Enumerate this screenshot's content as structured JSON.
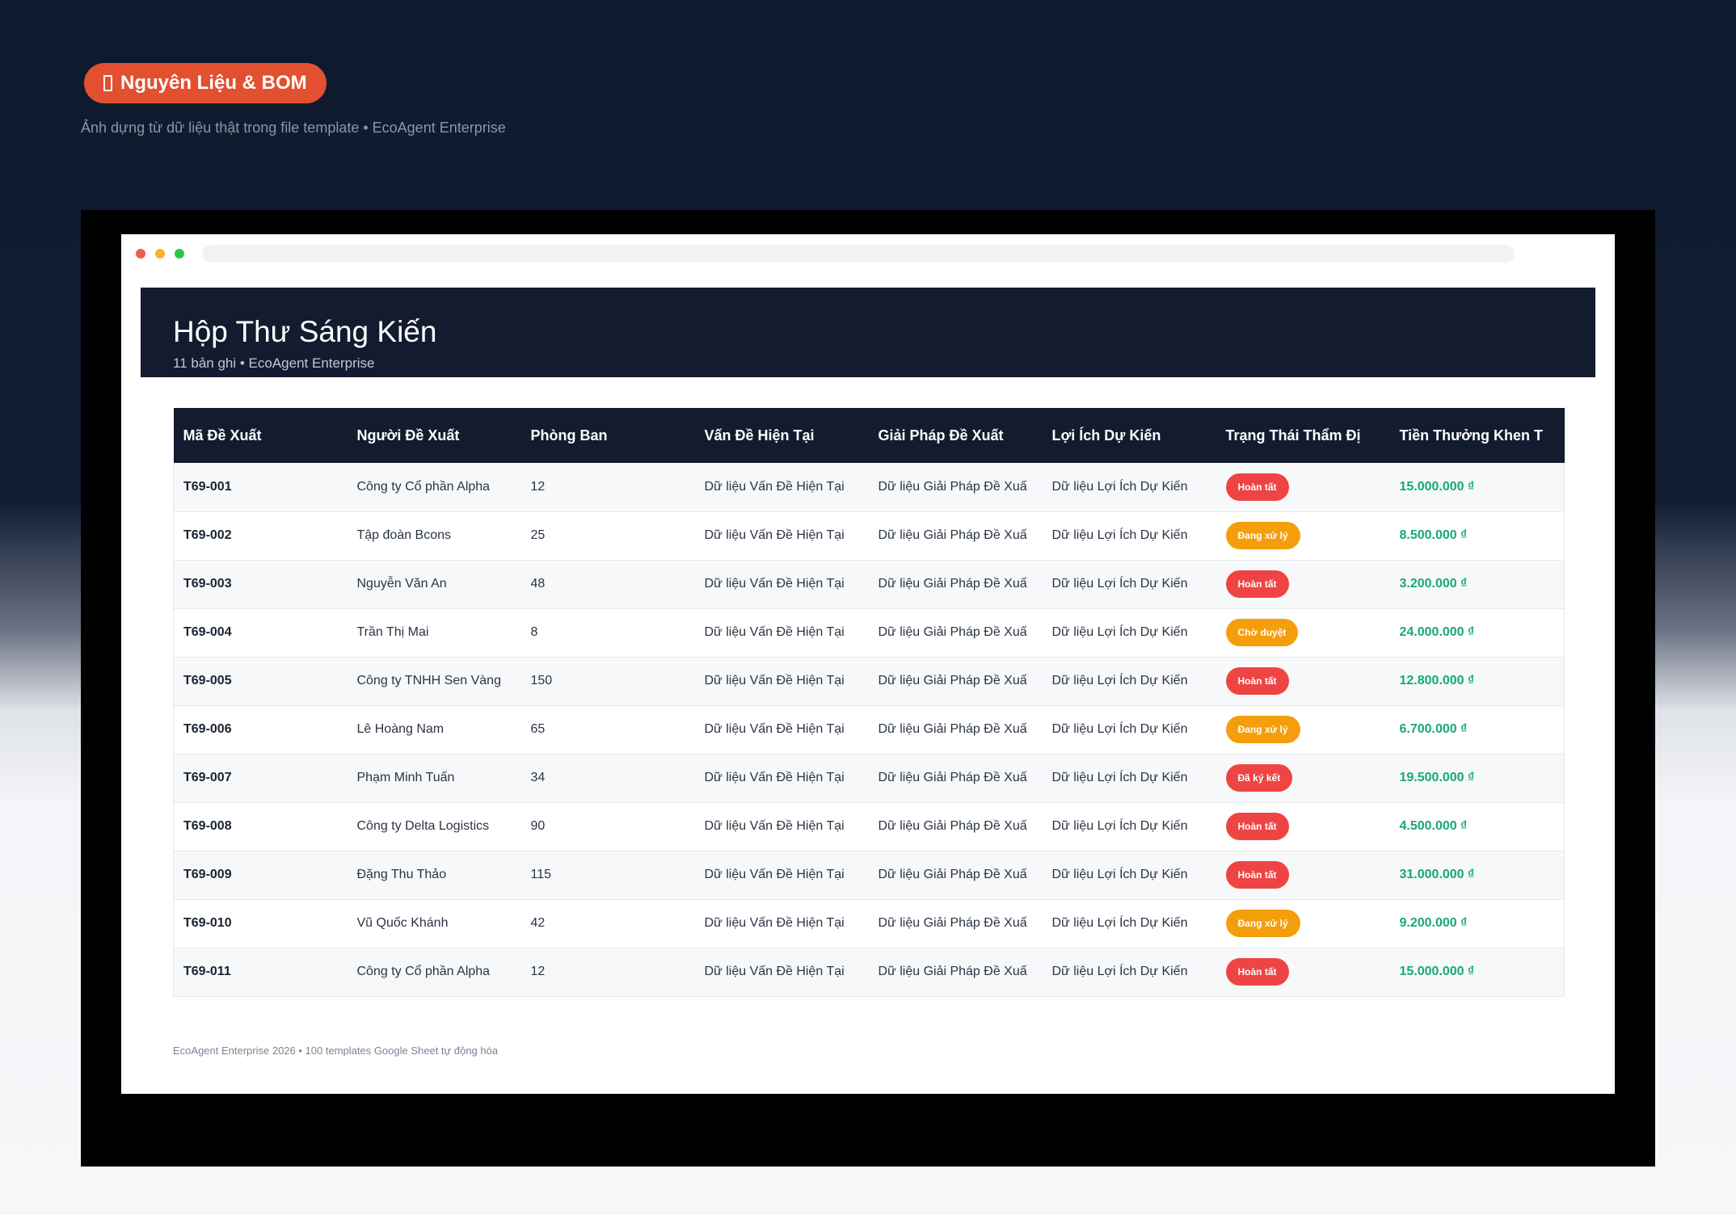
{
  "badge": {
    "icon": "document-icon",
    "label": "Nguyên Liệu & BOM"
  },
  "tagline": "Ảnh dựng từ dữ liệu thật trong file template • EcoAgent Enterprise",
  "sheet": {
    "title": "Hộp Thư Sáng Kiến",
    "subtitle": "11 bản ghi • EcoAgent Enterprise"
  },
  "table": {
    "columns": [
      "Mã Đề Xuất",
      "Người Đề Xuất",
      "Phòng Ban",
      "Vấn Đề Hiện Tại",
      "Giải Pháp Đề Xuất",
      "Lợi Ích Dự Kiến",
      "Trạng Thái Thẩm Đị",
      "Tiền Thưởng Khen T"
    ],
    "rows": [
      {
        "id": "T69-001",
        "person": "Công ty Cổ phần Alpha",
        "dept": "12",
        "problem": "Dữ liệu Vấn Đề Hiện Tại",
        "solution": "Dữ liệu Giải Pháp Đề Xuấ",
        "benefit": "Dữ liệu Lợi Ích Dự Kiến",
        "status": "Hoàn tất",
        "status_color": "#ef4444",
        "reward": "15.000.000 ₫"
      },
      {
        "id": "T69-002",
        "person": "Tập đoàn Bcons",
        "dept": "25",
        "problem": "Dữ liệu Vấn Đề Hiện Tại",
        "solution": "Dữ liệu Giải Pháp Đề Xuấ",
        "benefit": "Dữ liệu Lợi Ích Dự Kiến",
        "status": "Đang xử lý",
        "status_color": "#f59e0b",
        "reward": "8.500.000 ₫"
      },
      {
        "id": "T69-003",
        "person": "Nguyễn Văn An",
        "dept": "48",
        "problem": "Dữ liệu Vấn Đề Hiện Tại",
        "solution": "Dữ liệu Giải Pháp Đề Xuấ",
        "benefit": "Dữ liệu Lợi Ích Dự Kiến",
        "status": "Hoàn tất",
        "status_color": "#ef4444",
        "reward": "3.200.000 ₫"
      },
      {
        "id": "T69-004",
        "person": "Trần Thị Mai",
        "dept": "8",
        "problem": "Dữ liệu Vấn Đề Hiện Tại",
        "solution": "Dữ liệu Giải Pháp Đề Xuấ",
        "benefit": "Dữ liệu Lợi Ích Dự Kiến",
        "status": "Chờ duyệt",
        "status_color": "#f59e0b",
        "reward": "24.000.000 ₫"
      },
      {
        "id": "T69-005",
        "person": "Công ty TNHH Sen Vàng",
        "dept": "150",
        "problem": "Dữ liệu Vấn Đề Hiện Tại",
        "solution": "Dữ liệu Giải Pháp Đề Xuấ",
        "benefit": "Dữ liệu Lợi Ích Dự Kiến",
        "status": "Hoàn tất",
        "status_color": "#ef4444",
        "reward": "12.800.000 ₫"
      },
      {
        "id": "T69-006",
        "person": "Lê Hoàng Nam",
        "dept": "65",
        "problem": "Dữ liệu Vấn Đề Hiện Tại",
        "solution": "Dữ liệu Giải Pháp Đề Xuấ",
        "benefit": "Dữ liệu Lợi Ích Dự Kiến",
        "status": "Đang xử lý",
        "status_color": "#f59e0b",
        "reward": "6.700.000 ₫"
      },
      {
        "id": "T69-007",
        "person": "Phạm Minh Tuấn",
        "dept": "34",
        "problem": "Dữ liệu Vấn Đề Hiện Tại",
        "solution": "Dữ liệu Giải Pháp Đề Xuấ",
        "benefit": "Dữ liệu Lợi Ích Dự Kiến",
        "status": "Đã ký kết",
        "status_color": "#ef4444",
        "reward": "19.500.000 ₫"
      },
      {
        "id": "T69-008",
        "person": "Công ty Delta Logistics",
        "dept": "90",
        "problem": "Dữ liệu Vấn Đề Hiện Tại",
        "solution": "Dữ liệu Giải Pháp Đề Xuấ",
        "benefit": "Dữ liệu Lợi Ích Dự Kiến",
        "status": "Hoàn tất",
        "status_color": "#ef4444",
        "reward": "4.500.000 ₫"
      },
      {
        "id": "T69-009",
        "person": "Đặng Thu Thảo",
        "dept": "115",
        "problem": "Dữ liệu Vấn Đề Hiện Tại",
        "solution": "Dữ liệu Giải Pháp Đề Xuấ",
        "benefit": "Dữ liệu Lợi Ích Dự Kiến",
        "status": "Hoàn tất",
        "status_color": "#ef4444",
        "reward": "31.000.000 ₫"
      },
      {
        "id": "T69-010",
        "person": "Vũ Quốc Khánh",
        "dept": "42",
        "problem": "Dữ liệu Vấn Đề Hiện Tại",
        "solution": "Dữ liệu Giải Pháp Đề Xuấ",
        "benefit": "Dữ liệu Lợi Ích Dự Kiến",
        "status": "Đang xử lý",
        "status_color": "#f59e0b",
        "reward": "9.200.000 ₫"
      },
      {
        "id": "T69-011",
        "person": "Công ty Cổ phần Alpha",
        "dept": "12",
        "problem": "Dữ liệu Vấn Đề Hiện Tại",
        "solution": "Dữ liệu Giải Pháp Đề Xuấ",
        "benefit": "Dữ liệu Lợi Ích Dự Kiến",
        "status": "Hoàn tất",
        "status_color": "#ef4444",
        "reward": "15.000.000 ₫"
      }
    ]
  },
  "footer": "EcoAgent Enterprise 2026 • 100 templates Google Sheet tự động hóa",
  "colors": {
    "header_bg": "#131c2e",
    "badge_bg": "#e2502f",
    "money": "#18a873"
  }
}
